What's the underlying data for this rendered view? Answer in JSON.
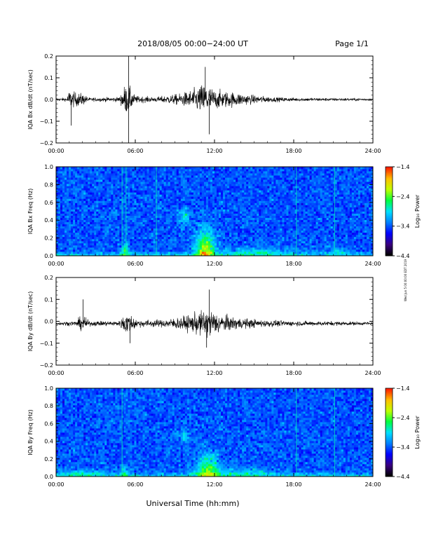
{
  "header": {
    "title": "2018/08/05  00:00−24:00 UT",
    "page": "Page 1/1"
  },
  "footer": {
    "xlabel": "Universal Time (hh:mm)",
    "side_note": "Wed Jun 5 00:00:00 EDT 2019"
  },
  "colors": {
    "trace": "#000000",
    "colormap": [
      "#000000",
      "#3a0080",
      "#0000ff",
      "#0080ff",
      "#00e0ff",
      "#00ff40",
      "#c0ff00",
      "#ffc000",
      "#ff2000"
    ]
  },
  "chart_data": [
    {
      "type": "line",
      "ylabel": "IQA Bx dB/dt (nT/sec)",
      "x_range_hours": [
        0,
        24
      ],
      "x_ticks": [
        "00:00",
        "06:00",
        "12:00",
        "18:00",
        "24:00"
      ],
      "ylim": [
        -0.2,
        0.2
      ],
      "y_ticks": [
        "−0.2",
        "−0.1",
        "0.0",
        "0.1",
        "0.2"
      ],
      "baseline": 0.0,
      "noise_floor": 0.008,
      "envelope": [
        {
          "hour": 0.0,
          "amp": 0.012
        },
        {
          "hour": 0.8,
          "amp": 0.015
        },
        {
          "hour": 1.0,
          "amp": 0.08
        },
        {
          "hour": 1.4,
          "amp": 0.06
        },
        {
          "hour": 2.0,
          "amp": 0.05
        },
        {
          "hour": 2.5,
          "amp": 0.015
        },
        {
          "hour": 4.8,
          "amp": 0.02
        },
        {
          "hour": 5.2,
          "amp": 0.12
        },
        {
          "hour": 5.6,
          "amp": 0.1
        },
        {
          "hour": 6.0,
          "amp": 0.03
        },
        {
          "hour": 7.5,
          "amp": 0.02
        },
        {
          "hour": 9.5,
          "amp": 0.05
        },
        {
          "hour": 10.5,
          "amp": 0.09
        },
        {
          "hour": 11.3,
          "amp": 0.14
        },
        {
          "hour": 12.0,
          "amp": 0.08
        },
        {
          "hour": 13.5,
          "amp": 0.06
        },
        {
          "hour": 15.0,
          "amp": 0.035
        },
        {
          "hour": 16.5,
          "amp": 0.02
        },
        {
          "hour": 18.0,
          "amp": 0.015
        },
        {
          "hour": 21.0,
          "amp": 0.012
        },
        {
          "hour": 24.0,
          "amp": 0.01
        }
      ],
      "spikes": [
        {
          "hour": 5.5,
          "value": 0.2
        },
        {
          "hour": 5.5,
          "value": -0.2
        },
        {
          "hour": 1.15,
          "value": -0.12
        },
        {
          "hour": 11.6,
          "value": -0.16
        },
        {
          "hour": 11.3,
          "value": 0.15
        }
      ]
    },
    {
      "type": "heatmap",
      "ylabel": "IQA Bx Freq (Hz)",
      "x_range_hours": [
        0,
        24
      ],
      "x_ticks": [
        "00:00",
        "06:00",
        "12:00",
        "18:00",
        "24:00"
      ],
      "ylim": [
        0.0,
        1.0
      ],
      "y_ticks": [
        "0.0",
        "0.2",
        "0.4",
        "0.6",
        "0.8",
        "1.0"
      ],
      "colorbar": {
        "label": "Log₁₀ Power",
        "range": [
          -4.4,
          -1.4
        ],
        "ticks": [
          "−1.4",
          "−2.4",
          "−3.4",
          "−4.4"
        ]
      },
      "background_level": -3.4,
      "vertical_lines_hours": [
        5.0,
        5.3,
        7.6,
        18.2,
        21.1
      ],
      "hot_spots": [
        {
          "hour": 11.3,
          "freq": 0.05,
          "width_h": 1.4,
          "height_hz": 0.22,
          "level": -1.9
        },
        {
          "hour": 9.7,
          "freq": 0.45,
          "width_h": 0.8,
          "height_hz": 0.08,
          "level": -2.7
        },
        {
          "hour": 5.2,
          "freq": 0.05,
          "width_h": 0.5,
          "height_hz": 0.08,
          "level": -2.4
        },
        {
          "hour": 15.0,
          "freq": 0.05,
          "width_h": 6.0,
          "height_hz": 0.05,
          "level": -2.9
        },
        {
          "hour": 21.5,
          "freq": 0.05,
          "width_h": 1.5,
          "height_hz": 0.04,
          "level": -2.9
        }
      ]
    },
    {
      "type": "line",
      "ylabel": "IQA By dB/dt (nT/sec)",
      "x_range_hours": [
        0,
        24
      ],
      "x_ticks": [
        "00:00",
        "06:00",
        "12:00",
        "18:00",
        "24:00"
      ],
      "ylim": [
        -0.2,
        0.2
      ],
      "y_ticks": [
        "−0.2",
        "−0.1",
        "0.0",
        "0.1",
        "0.2"
      ],
      "baseline": -0.01,
      "noise_floor": 0.008,
      "envelope": [
        {
          "hour": 0.0,
          "amp": 0.012
        },
        {
          "hour": 1.5,
          "amp": 0.02
        },
        {
          "hour": 2.0,
          "amp": 0.07
        },
        {
          "hour": 2.5,
          "amp": 0.02
        },
        {
          "hour": 4.8,
          "amp": 0.02
        },
        {
          "hour": 5.2,
          "amp": 0.09
        },
        {
          "hour": 5.7,
          "amp": 0.07
        },
        {
          "hour": 6.2,
          "amp": 0.03
        },
        {
          "hour": 8.0,
          "amp": 0.03
        },
        {
          "hour": 9.8,
          "amp": 0.06
        },
        {
          "hour": 11.0,
          "amp": 0.1
        },
        {
          "hour": 11.6,
          "amp": 0.12
        },
        {
          "hour": 12.5,
          "amp": 0.07
        },
        {
          "hour": 14.0,
          "amp": 0.045
        },
        {
          "hour": 15.5,
          "amp": 0.03
        },
        {
          "hour": 18.0,
          "amp": 0.02
        },
        {
          "hour": 21.0,
          "amp": 0.018
        },
        {
          "hour": 24.0,
          "amp": 0.012
        }
      ],
      "spikes": [
        {
          "hour": 2.05,
          "value": 0.1
        },
        {
          "hour": 11.6,
          "value": 0.145
        },
        {
          "hour": 11.4,
          "value": -0.12
        },
        {
          "hour": 5.6,
          "value": -0.1
        }
      ]
    },
    {
      "type": "heatmap",
      "ylabel": "IQA By Freq (Hz)",
      "x_range_hours": [
        0,
        24
      ],
      "x_ticks": [
        "00:00",
        "06:00",
        "12:00",
        "18:00",
        "24:00"
      ],
      "ylim": [
        0.0,
        1.0
      ],
      "y_ticks": [
        "0.0",
        "0.2",
        "0.4",
        "0.6",
        "0.8",
        "1.0"
      ],
      "colorbar": {
        "label": "Log₁₀ Power",
        "range": [
          -4.4,
          -1.4
        ],
        "ticks": [
          "−1.4",
          "−2.4",
          "−3.4",
          "−4.4"
        ]
      },
      "background_level": -3.4,
      "vertical_lines_hours": [
        5.0,
        18.2,
        21.1
      ],
      "hot_spots": [
        {
          "hour": 11.5,
          "freq": 0.06,
          "width_h": 1.6,
          "height_hz": 0.2,
          "level": -2.3
        },
        {
          "hour": 9.7,
          "freq": 0.45,
          "width_h": 0.6,
          "height_hz": 0.07,
          "level": -2.8
        },
        {
          "hour": 5.2,
          "freq": 0.05,
          "width_h": 0.5,
          "height_hz": 0.07,
          "level": -2.6
        },
        {
          "hour": 14.0,
          "freq": 0.05,
          "width_h": 6.0,
          "height_hz": 0.05,
          "level": -2.9
        },
        {
          "hour": 2.0,
          "freq": 0.04,
          "width_h": 4.0,
          "height_hz": 0.04,
          "level": -2.9
        }
      ]
    }
  ]
}
